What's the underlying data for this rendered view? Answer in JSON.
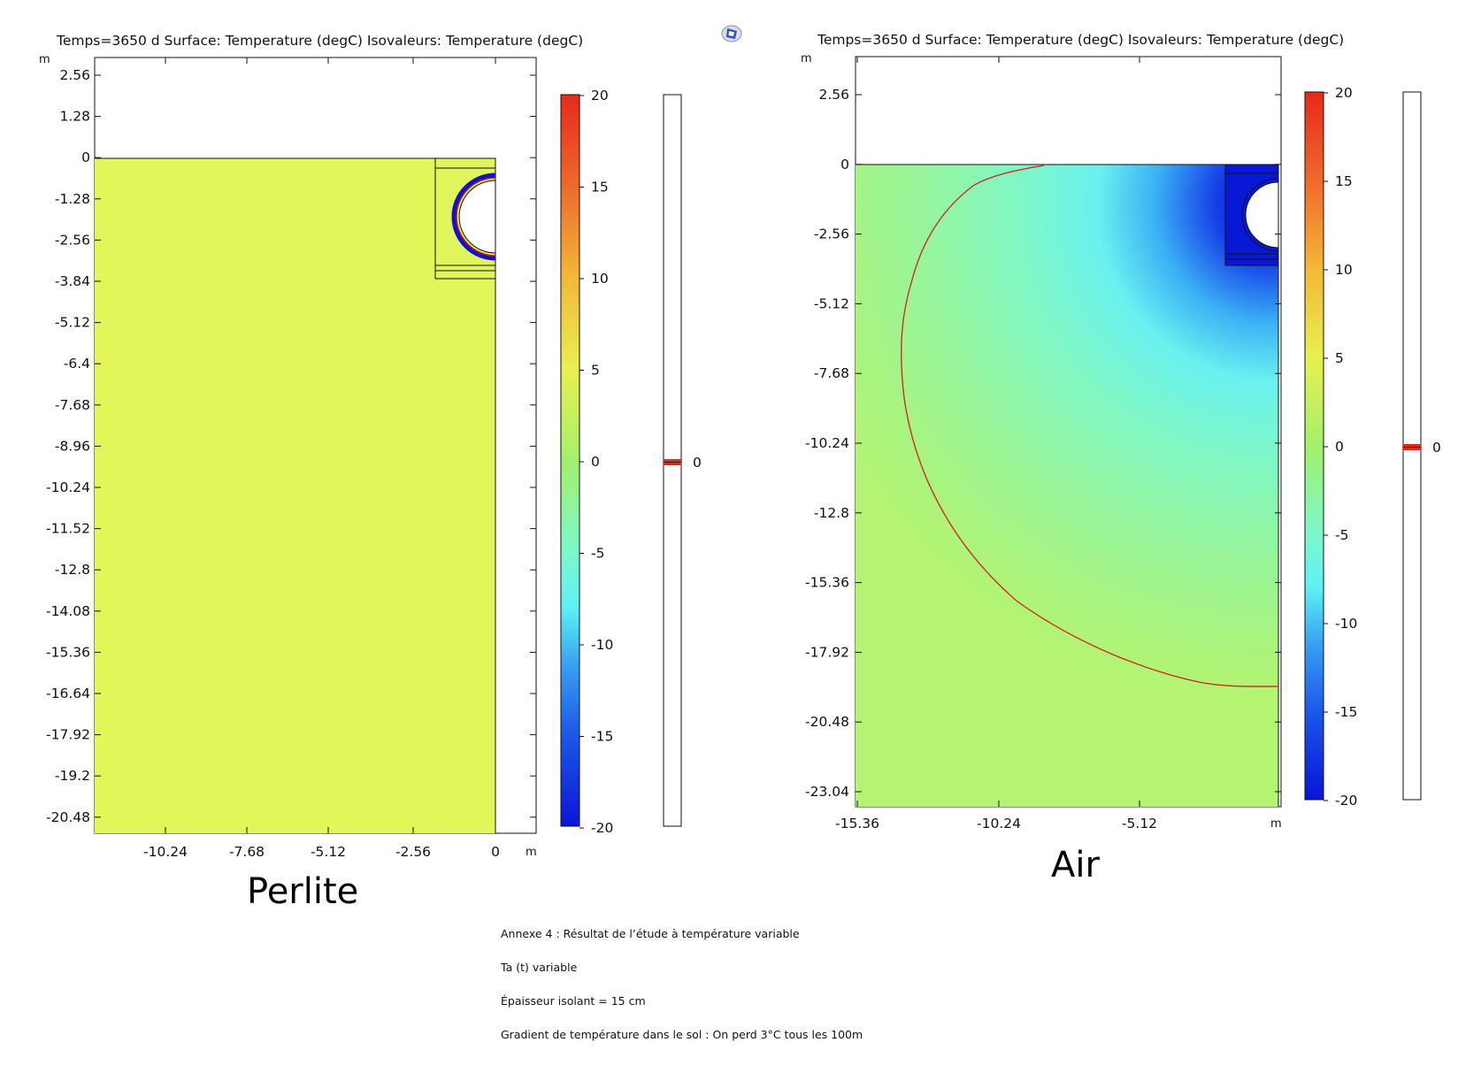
{
  "plots": [
    {
      "title": "Temps=3650 d   Surface: Temperature (degC)  Isovaleurs: Temperature (degC)",
      "yunit": "m",
      "xunit": "m",
      "yticks": [
        "2.56",
        "1.28",
        "0",
        "-1.28",
        "-2.56",
        "-3.84",
        "-5.12",
        "-6.4",
        "-7.68",
        "-8.96",
        "-10.24",
        "-11.52",
        "-12.8",
        "-14.08",
        "-15.36",
        "-16.64",
        "-17.92",
        "-19.2",
        "-20.48"
      ],
      "xticks": [
        "-10.24",
        "-7.68",
        "-5.12",
        "-2.56",
        "0"
      ],
      "colorbar_ticks": [
        "20",
        "15",
        "10",
        "5",
        "0",
        "-5",
        "-10",
        "-15",
        "-20"
      ],
      "isoline_label": "0",
      "caption": "Perlite"
    },
    {
      "title": "Temps=3650 d   Surface: Temperature (degC)  Isovaleurs: Temperature (degC)",
      "yunit": "m",
      "xunit": "m",
      "yticks": [
        "2.56",
        "0",
        "-2.56",
        "-5.12",
        "-7.68",
        "-10.24",
        "-12.8",
        "-15.36",
        "-17.92",
        "-20.48",
        "-23.04"
      ],
      "xticks": [
        "-15.36",
        "-10.24",
        "-5.12"
      ],
      "colorbar_ticks": [
        "20",
        "15",
        "10",
        "5",
        "0",
        "-5",
        "-10",
        "-15",
        "-20"
      ],
      "isoline_label": "0",
      "caption": "Air"
    }
  ],
  "notes": [
    "Annexe 4 : Résultat de l’étude à température variable",
    "Ta (t) variable",
    "Épaisseur isolant = 15 cm",
    "Gradient de température dans le sol : On perd 3°C tous les 100m"
  ],
  "icons": {
    "app": "comsol-app-icon"
  },
  "colors": {
    "perlite_fill": "#e2f65a",
    "isoline": "#d02020",
    "cold": "#0a1ad8",
    "frame": "#111111"
  }
}
